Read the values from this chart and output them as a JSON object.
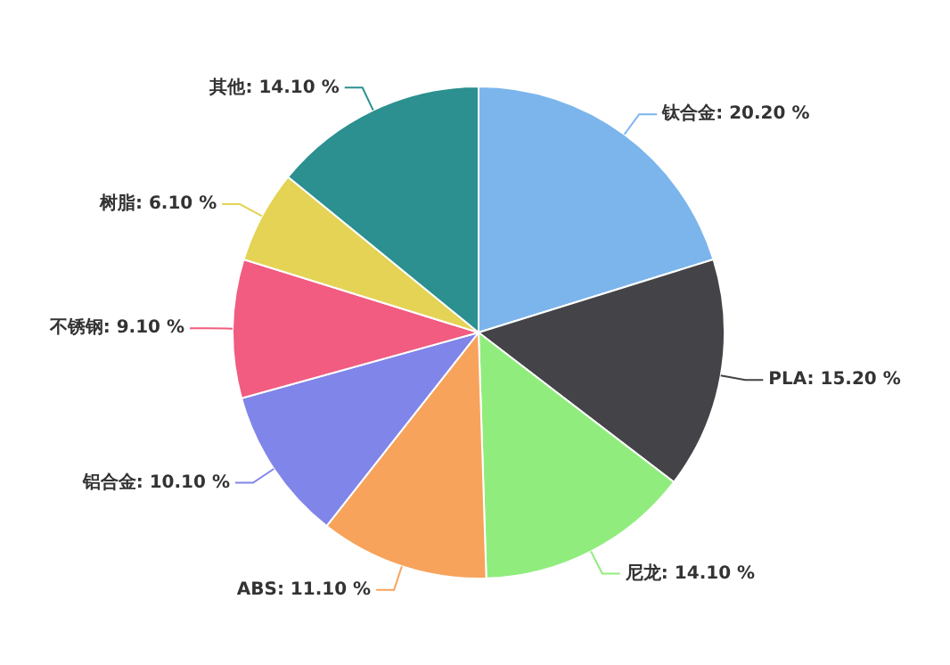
{
  "chart_data": {
    "type": "pie",
    "categories": [
      "钛合金",
      "PLA",
      "尼龙",
      "ABS",
      "铝合金",
      "不锈钢",
      "树脂",
      "其他"
    ],
    "values": [
      20.2,
      15.2,
      14.1,
      11.1,
      10.1,
      9.1,
      6.1,
      14.1
    ],
    "value_labels": [
      "20.20 %",
      "15.20 %",
      "14.10 %",
      "11.10 %",
      "10.10 %",
      "9.10 %",
      "6.10 %",
      "14.10 %"
    ],
    "colors": [
      "#7cb5ec",
      "#434348",
      "#90ed7d",
      "#f7a35c",
      "#8085e9",
      "#f15c80",
      "#e4d354",
      "#2b908f"
    ],
    "legend": false
  }
}
